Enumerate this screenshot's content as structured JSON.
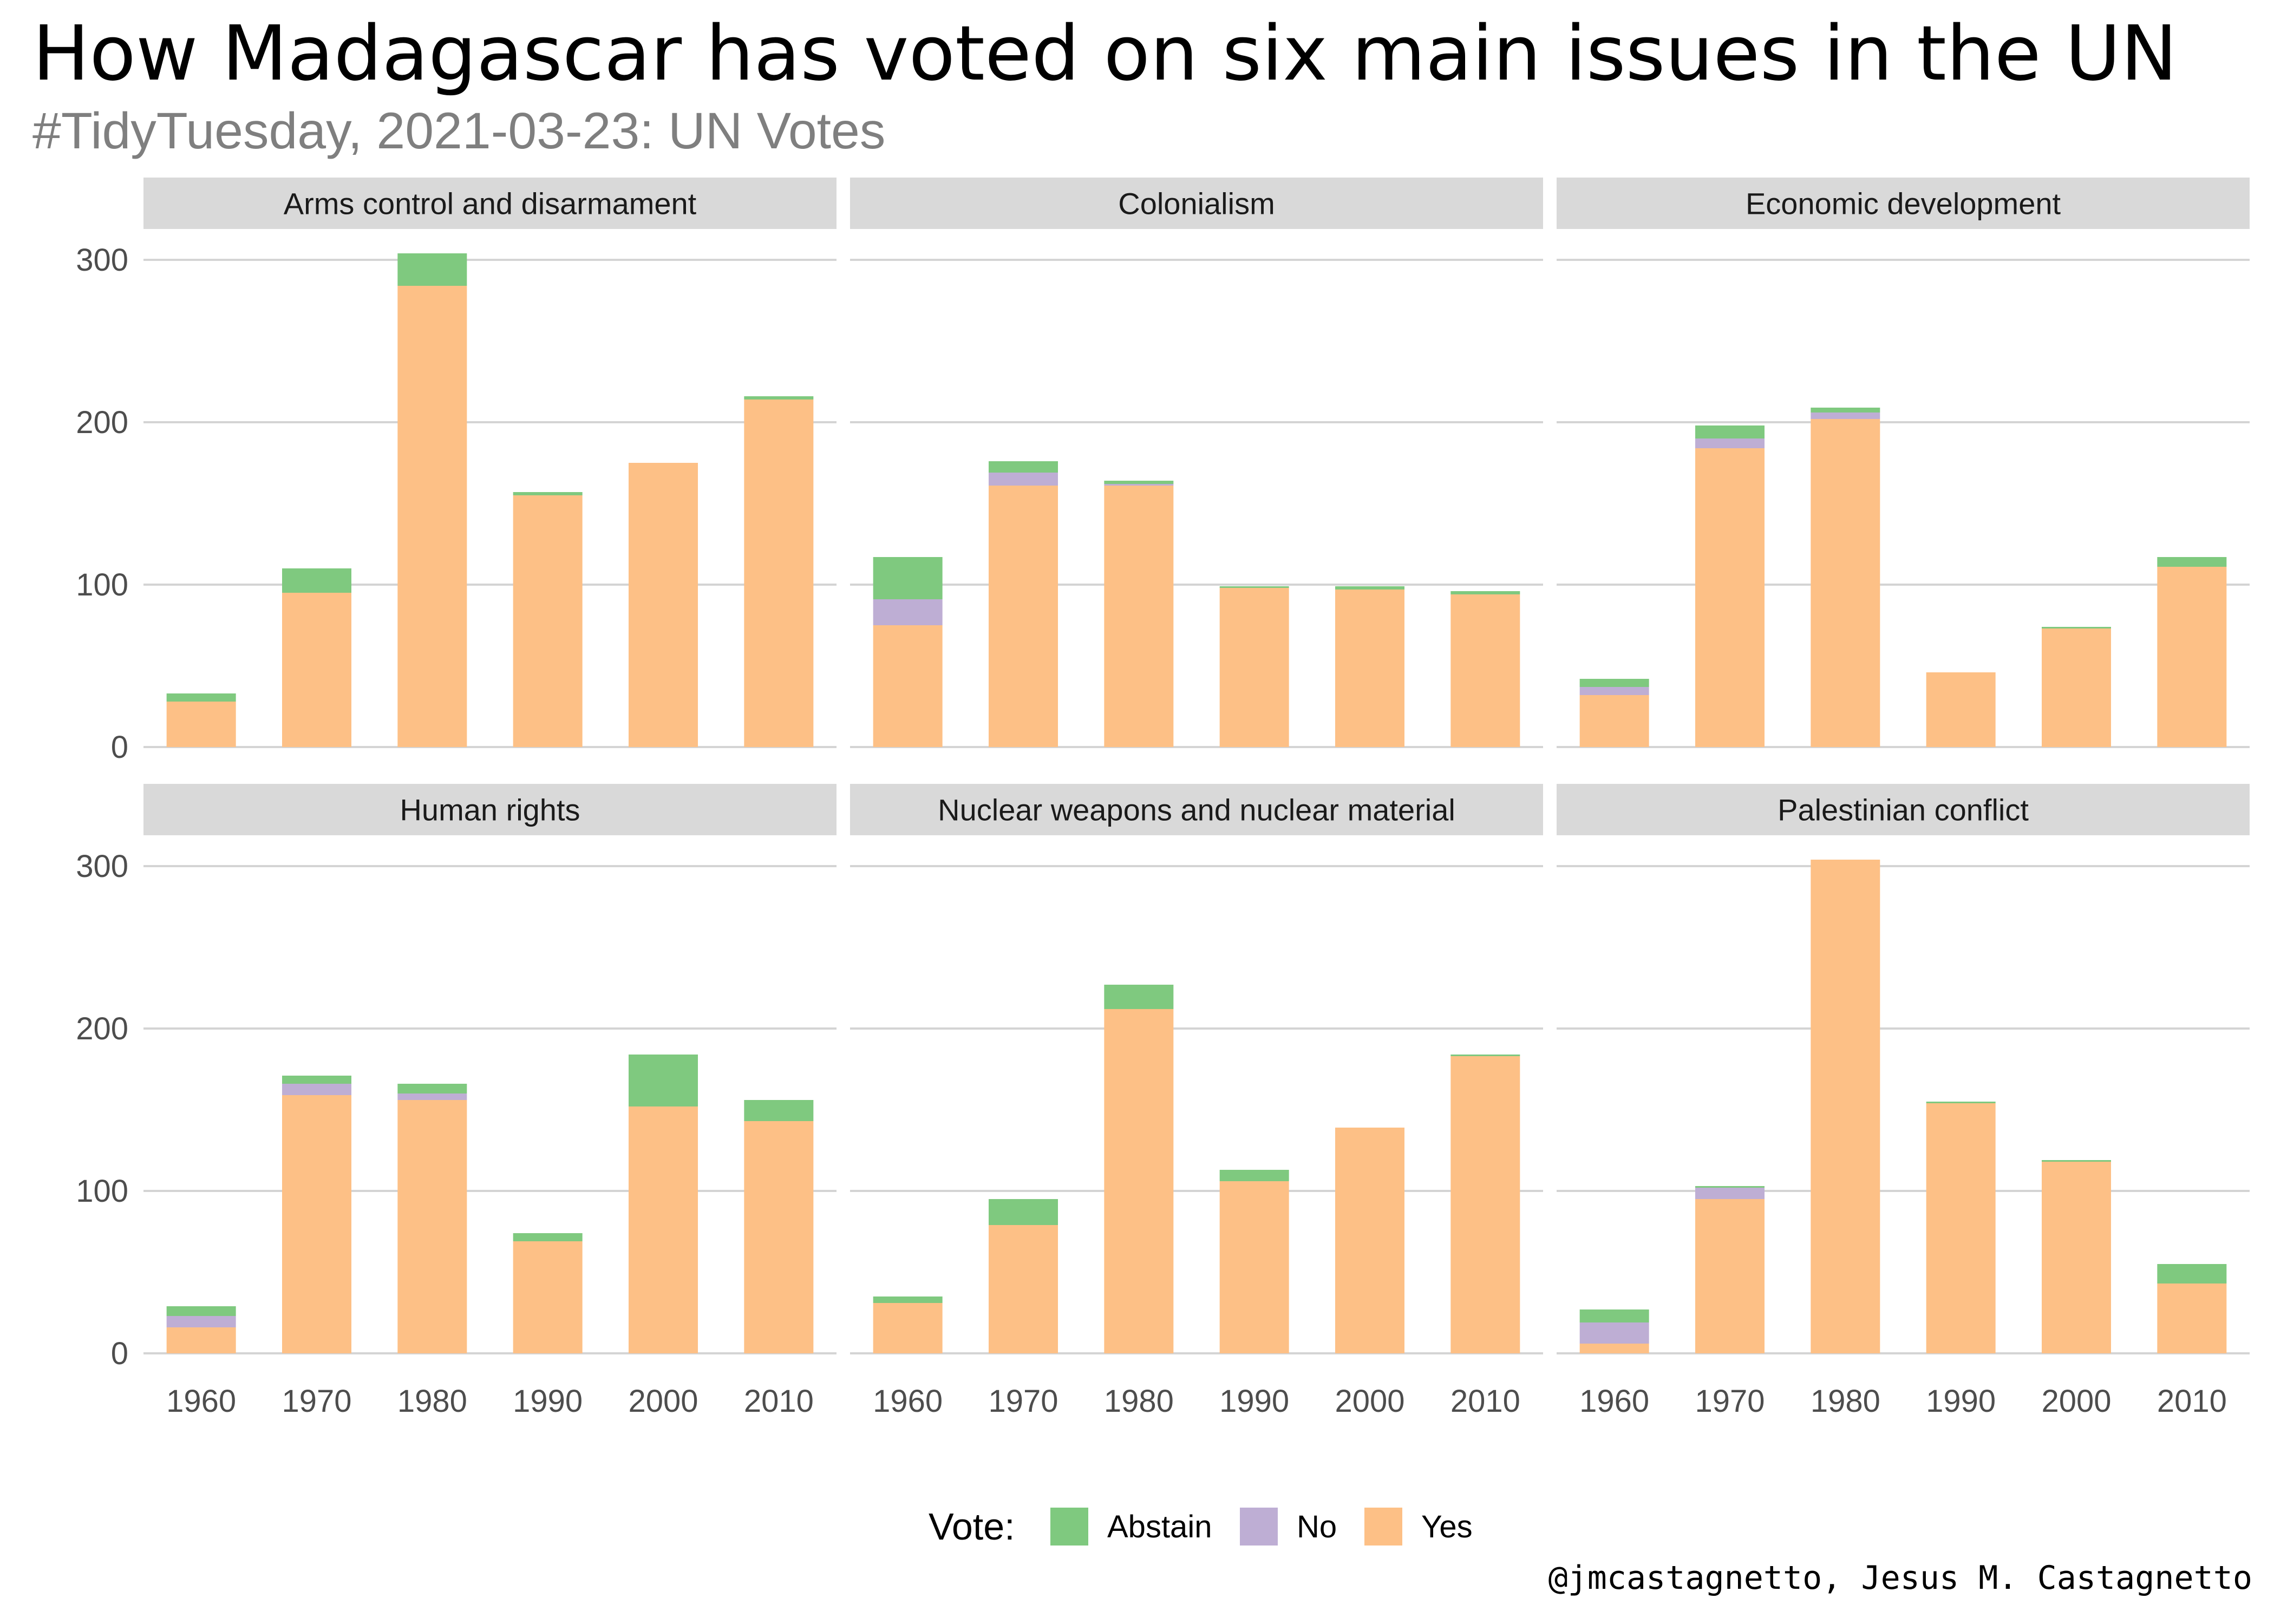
{
  "title": "How Madagascar has voted on six main issues in the UN",
  "subtitle": "#TidyTuesday, 2021-03-23: UN Votes",
  "caption": "@jmcastagnetto, Jesus M. Castagnetto",
  "chart_data": {
    "type": "bar",
    "stacked": true,
    "categories": [
      "1960",
      "1970",
      "1980",
      "1990",
      "2000",
      "2010"
    ],
    "ylim": [
      0,
      320
    ],
    "yticks": [
      0,
      100,
      200,
      300
    ],
    "grid": true,
    "legend": {
      "title": "Vote:",
      "placement": "bottom",
      "entries": [
        {
          "name": "Abstain",
          "color": "#7fc97f"
        },
        {
          "name": "No",
          "color": "#beaed4"
        },
        {
          "name": "Yes",
          "color": "#fdc086"
        }
      ]
    },
    "facets": [
      {
        "name": "Arms control and disarmament",
        "series": [
          {
            "name": "Yes",
            "values": [
              28,
              95,
              284,
              155,
              175,
              214
            ]
          },
          {
            "name": "No",
            "values": [
              0,
              0,
              0,
              0,
              0,
              0
            ]
          },
          {
            "name": "Abstain",
            "values": [
              5,
              15,
              20,
              2,
              0,
              2
            ]
          }
        ]
      },
      {
        "name": "Colonialism",
        "series": [
          {
            "name": "Yes",
            "values": [
              75,
              161,
              161,
              98,
              97,
              94
            ]
          },
          {
            "name": "No",
            "values": [
              16,
              8,
              1,
              0,
              0,
              0
            ]
          },
          {
            "name": "Abstain",
            "values": [
              26,
              7,
              2,
              1,
              2,
              2
            ]
          }
        ]
      },
      {
        "name": "Economic development",
        "series": [
          {
            "name": "Yes",
            "values": [
              32,
              184,
              202,
              46,
              73,
              111
            ]
          },
          {
            "name": "No",
            "values": [
              5,
              6,
              4,
              0,
              0,
              0
            ]
          },
          {
            "name": "Abstain",
            "values": [
              5,
              8,
              3,
              0,
              1,
              6
            ]
          }
        ]
      },
      {
        "name": "Human rights",
        "series": [
          {
            "name": "Yes",
            "values": [
              16,
              159,
              156,
              69,
              152,
              143
            ]
          },
          {
            "name": "No",
            "values": [
              7,
              7,
              4,
              0,
              0,
              0
            ]
          },
          {
            "name": "Abstain",
            "values": [
              6,
              5,
              6,
              5,
              32,
              13
            ]
          }
        ]
      },
      {
        "name": "Nuclear weapons and nuclear material",
        "series": [
          {
            "name": "Yes",
            "values": [
              31,
              79,
              212,
              106,
              139,
              183
            ]
          },
          {
            "name": "No",
            "values": [
              0,
              0,
              0,
              0,
              0,
              0
            ]
          },
          {
            "name": "Abstain",
            "values": [
              4,
              16,
              15,
              7,
              0,
              1
            ]
          }
        ]
      },
      {
        "name": "Palestinian conflict",
        "series": [
          {
            "name": "Yes",
            "values": [
              6,
              95,
              304,
              154,
              118,
              43
            ]
          },
          {
            "name": "No",
            "values": [
              13,
              7,
              0,
              0,
              0,
              0
            ]
          },
          {
            "name": "Abstain",
            "values": [
              8,
              1,
              0,
              1,
              1,
              12
            ]
          }
        ]
      }
    ]
  }
}
